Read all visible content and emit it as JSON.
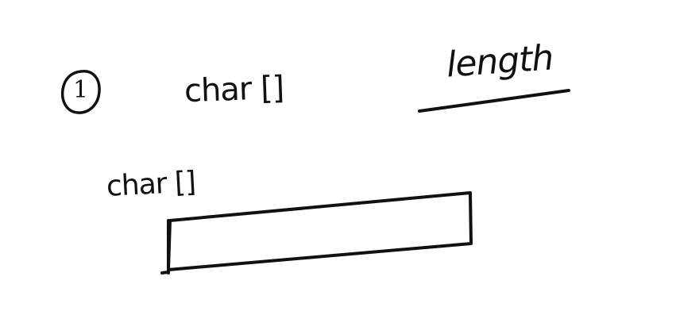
{
  "sketch": {
    "step_number": "1",
    "top_label": "char []",
    "length_label": "length",
    "array_label": "char []"
  }
}
